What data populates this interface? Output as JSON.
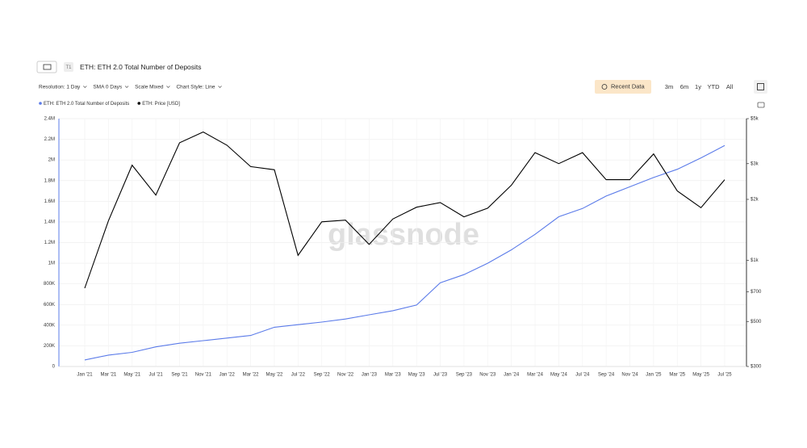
{
  "toolbar": {
    "badge": "T1",
    "controls": [
      "Resolution: 1 Day",
      "SMA 0 Days",
      "Scale Mixed",
      "Chart Style: Line"
    ],
    "recent": "Recent Data",
    "ranges": [
      "3m",
      "6m",
      "1y",
      "YTD",
      "All"
    ]
  },
  "chart_data": {
    "type": "line",
    "title": "ETH: ETH 2.0 Total Number of Deposits",
    "watermark": "glassnode",
    "x": [
      "Jan '21",
      "Mar '21",
      "May '21",
      "Jul '21",
      "Sep '21",
      "Nov '21",
      "Jan '22",
      "Mar '22",
      "May '22",
      "Jul '22",
      "Sep '22",
      "Nov '22",
      "Jan '23",
      "Mar '23",
      "May '23",
      "Jul '23",
      "Sep '23",
      "Nov '23",
      "Jan '24",
      "Mar '24",
      "May '24",
      "Jul '24",
      "Sep '24",
      "Nov '24",
      "Jan '25",
      "Mar '25",
      "May '25",
      "Jul '25"
    ],
    "series": [
      {
        "name": "ETH: ETH 2.0 Total Number of Deposits",
        "color": "#5b7be9",
        "values": [
          63000,
          110000,
          137000,
          190000,
          225000,
          250000,
          275000,
          300000,
          380000,
          405000,
          430000,
          460000,
          500000,
          540000,
          595000,
          810000,
          890000,
          1000000,
          1130000,
          1280000,
          1450000,
          1530000,
          1650000,
          1740000,
          1830000,
          1910000,
          2020000,
          2140000
        ]
      },
      {
        "name": "ETH: Price [USD]",
        "color": "#000000",
        "axis": "y2",
        "values": [
          730,
          1570,
          2950,
          2100,
          3800,
          4300,
          3700,
          2900,
          2800,
          1060,
          1550,
          1580,
          1200,
          1600,
          1830,
          1930,
          1640,
          1810,
          2350,
          3400,
          3000,
          3400,
          2500,
          2500,
          3350,
          2200,
          1820,
          2500
        ]
      }
    ],
    "ylim": [
      0,
      2400000
    ],
    "yticks": [
      0,
      {
        "value": 200000,
        "label": "200K"
      },
      {
        "value": 400000,
        "label": "400K"
      },
      {
        "value": 600000,
        "label": "600K"
      },
      {
        "value": 800000,
        "label": "800K"
      },
      {
        "value": 1000000,
        "label": "1M"
      },
      {
        "value": 1200000,
        "label": "1.2M"
      },
      {
        "value": 1400000,
        "label": "1.4M"
      },
      {
        "value": 1600000,
        "label": "1.6M"
      },
      {
        "value": 1800000,
        "label": "1.8M"
      },
      {
        "value": 2000000,
        "label": "2M"
      },
      {
        "value": 2200000,
        "label": "2.2M"
      },
      {
        "value": 2400000,
        "label": "2.4M"
      }
    ],
    "y2lim": [
      300,
      5000
    ],
    "y2scale": "log",
    "y2ticks": [
      {
        "value": 300,
        "label": "$300"
      },
      {
        "value": 500,
        "label": "$500"
      },
      {
        "value": 700,
        "label": "$700"
      },
      {
        "value": 1000,
        "label": "$1k"
      },
      {
        "value": 2000,
        "label": "$2k"
      },
      {
        "value": 3000,
        "label": "$3k"
      },
      {
        "value": 5000,
        "label": "$5k"
      }
    ],
    "grid": true
  }
}
